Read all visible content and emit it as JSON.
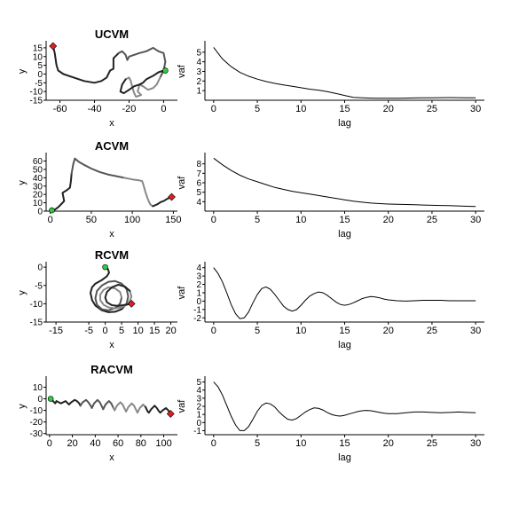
{
  "chart_data": [
    {
      "type": "line",
      "title": "UCVM",
      "xlabel": "x",
      "ylabel": "y",
      "xlim": [
        -68,
        8
      ],
      "ylim": [
        -15,
        18
      ],
      "xticks": [
        -60,
        -40,
        -20,
        0
      ],
      "yticks": [
        -15,
        -10,
        -5,
        0,
        5,
        10,
        15
      ],
      "series": [
        {
          "x": [
            -64,
            -63,
            -62,
            -61,
            -58,
            -52,
            -46,
            -40,
            -36,
            -33,
            -31,
            -29,
            -29,
            -26,
            -24,
            -22,
            -21,
            -20,
            -17,
            -14,
            -10,
            -6,
            -3,
            0,
            1,
            0,
            -2,
            -4,
            -6,
            -9,
            -12,
            -14,
            -15,
            -13,
            -16,
            -17,
            -18,
            -19,
            -20,
            -22,
            -24,
            -25,
            -23,
            -20,
            -17,
            -14,
            -12,
            -10,
            -6,
            -3,
            0,
            1
          ],
          "y": [
            16,
            12,
            5,
            2,
            0,
            -2,
            -4,
            -5,
            -4,
            -2,
            2,
            3,
            9,
            12,
            13,
            11,
            8,
            10,
            11,
            12,
            13,
            15,
            13,
            12,
            7,
            2,
            -2,
            -6,
            -8,
            -9,
            -7,
            -6,
            -10,
            -12,
            -13,
            -11,
            -8,
            -4,
            -2,
            -3,
            -6,
            -10,
            -11,
            -9,
            -7,
            -6,
            -5,
            -3,
            -1,
            1,
            2,
            2
          ]
        }
      ]
    },
    {
      "type": "line",
      "xlabel": "lag",
      "ylabel": "vaf",
      "xlim": [
        -1,
        31
      ],
      "ylim": [
        0,
        6
      ],
      "xticks": [
        0,
        5,
        10,
        15,
        20,
        25,
        30
      ],
      "yticks": [
        1,
        2,
        3,
        4,
        5
      ],
      "series": [
        {
          "x": [
            0,
            1,
            2,
            3,
            4,
            5,
            6,
            7,
            8,
            9,
            10,
            11,
            12,
            13,
            14,
            15,
            16,
            17,
            18,
            19,
            20,
            21,
            22,
            23,
            24,
            25,
            26,
            27,
            28,
            29,
            30
          ],
          "y": [
            5.5,
            4.3,
            3.5,
            2.9,
            2.5,
            2.2,
            1.95,
            1.75,
            1.6,
            1.45,
            1.3,
            1.15,
            1.05,
            0.9,
            0.7,
            0.5,
            0.3,
            0.25,
            0.22,
            0.2,
            0.2,
            0.2,
            0.22,
            0.24,
            0.25,
            0.26,
            0.27,
            0.28,
            0.27,
            0.26,
            0.25
          ]
        }
      ]
    },
    {
      "type": "line",
      "title": "ACVM",
      "xlabel": "x",
      "ylabel": "y",
      "xlim": [
        -5,
        155
      ],
      "ylim": [
        0,
        68
      ],
      "xticks": [
        0,
        50,
        100,
        150
      ],
      "yticks": [
        0,
        10,
        20,
        30,
        40,
        50,
        60
      ],
      "series": [
        {
          "x": [
            2,
            6,
            10,
            14,
            17,
            15,
            20,
            24,
            25,
            26,
            28,
            30,
            35,
            42,
            50,
            60,
            70,
            80,
            90,
            100,
            108,
            112,
            114,
            116,
            118,
            120,
            122,
            125,
            130,
            135,
            138,
            143,
            148
          ],
          "y": [
            1,
            2,
            5,
            9,
            12,
            22,
            25,
            28,
            35,
            45,
            56,
            63,
            59,
            55,
            51,
            47,
            44,
            42,
            40,
            38,
            37,
            36,
            30,
            23,
            17,
            12,
            8,
            6,
            8,
            11,
            12,
            15,
            17
          ]
        }
      ]
    },
    {
      "type": "line",
      "xlabel": "lag",
      "ylabel": "vaf",
      "xlim": [
        -1,
        31
      ],
      "ylim": [
        3,
        9
      ],
      "xticks": [
        0,
        5,
        10,
        15,
        20,
        25,
        30
      ],
      "yticks": [
        4,
        5,
        6,
        7,
        8
      ],
      "series": [
        {
          "x": [
            0,
            1,
            2,
            3,
            4,
            5,
            6,
            7,
            8,
            9,
            10,
            11,
            12,
            13,
            14,
            15,
            16,
            17,
            18,
            19,
            20,
            21,
            22,
            23,
            24,
            25,
            26,
            27,
            28,
            29,
            30
          ],
          "y": [
            8.6,
            7.9,
            7.3,
            6.8,
            6.4,
            6.1,
            5.8,
            5.5,
            5.3,
            5.1,
            4.95,
            4.8,
            4.65,
            4.5,
            4.35,
            4.2,
            4.05,
            3.95,
            3.85,
            3.8,
            3.75,
            3.72,
            3.7,
            3.68,
            3.65,
            3.62,
            3.6,
            3.58,
            3.55,
            3.52,
            3.5
          ]
        }
      ]
    },
    {
      "type": "line",
      "title": "RCVM",
      "xlabel": "x",
      "ylabel": "y",
      "xlim": [
        -18,
        22
      ],
      "ylim": [
        -15,
        1
      ],
      "xticks": [
        -15,
        -5,
        0,
        5,
        10,
        15,
        20
      ],
      "yticks": [
        -15,
        -10,
        -5,
        0
      ],
      "series": [
        {
          "x": [
            0,
            0.8,
            1.2,
            0.5,
            -1,
            -3,
            -4,
            -4.5,
            -4,
            -3,
            -1,
            1,
            3,
            5,
            6.5,
            7,
            6.5,
            5,
            3,
            1,
            -1,
            -2.5,
            -3,
            -2.5,
            -1,
            1,
            3,
            4.5,
            5,
            4.5,
            3,
            1,
            -0.5,
            -1.5,
            -1.5,
            -0.5,
            1,
            3,
            5,
            6.5,
            7.5,
            8,
            7.5,
            6,
            4,
            2,
            0.5,
            0,
            0.5,
            2,
            4,
            6,
            8
          ],
          "y": [
            0,
            -0.5,
            -1.5,
            -2.5,
            -3.5,
            -4.5,
            -5.5,
            -7,
            -9,
            -10.5,
            -11.8,
            -12.3,
            -12.2,
            -11.5,
            -10,
            -8,
            -6,
            -4.5,
            -3.8,
            -4,
            -5,
            -6.5,
            -8.5,
            -10.3,
            -11.5,
            -11.8,
            -11.2,
            -10,
            -8.3,
            -6.8,
            -5.8,
            -5.5,
            -6.2,
            -7.5,
            -9,
            -10.3,
            -11,
            -11.3,
            -11,
            -10.3,
            -9.3,
            -8,
            -6.5,
            -5.3,
            -4.8,
            -5.5,
            -6.8,
            -8.3,
            -9.6,
            -10.4,
            -10.6,
            -10.3,
            -10
          ]
        }
      ]
    },
    {
      "type": "line",
      "xlabel": "lag",
      "ylabel": "vaf",
      "xlim": [
        -1,
        31
      ],
      "ylim": [
        -2.5,
        4.5
      ],
      "xticks": [
        0,
        5,
        10,
        15,
        20,
        25,
        30
      ],
      "yticks": [
        -2,
        -1,
        0,
        1,
        2,
        3,
        4
      ],
      "series": [
        {
          "x": [
            0,
            0.5,
            1,
            1.5,
            2,
            2.5,
            3,
            3.5,
            4,
            4.5,
            5,
            5.5,
            6,
            6.5,
            7,
            7.5,
            8,
            8.5,
            9,
            9.5,
            10,
            10.5,
            11,
            11.5,
            12,
            12.5,
            13,
            13.5,
            14,
            14.5,
            15,
            15.5,
            16,
            16.5,
            17,
            17.5,
            18,
            18.5,
            19,
            19.5,
            20,
            21,
            22,
            23,
            24,
            25,
            26,
            27,
            28,
            29,
            30
          ],
          "y": [
            4,
            3.3,
            2.3,
            1.0,
            -0.4,
            -1.5,
            -2.1,
            -2.0,
            -1.3,
            -0.2,
            0.8,
            1.5,
            1.7,
            1.4,
            0.8,
            0.1,
            -0.6,
            -1.0,
            -1.2,
            -1.0,
            -0.5,
            0.1,
            0.6,
            0.9,
            1.1,
            1.0,
            0.7,
            0.3,
            -0.1,
            -0.4,
            -0.5,
            -0.4,
            -0.2,
            0.05,
            0.3,
            0.45,
            0.55,
            0.5,
            0.4,
            0.25,
            0.15,
            0.05,
            0.0,
            0.05,
            0.1,
            0.1,
            0.1,
            0.05,
            0.05,
            0.05,
            0.05
          ]
        }
      ]
    },
    {
      "type": "line",
      "title": "RACVM",
      "xlabel": "x",
      "ylabel": "y",
      "xlim": [
        -3,
        112
      ],
      "ylim": [
        -31,
        18
      ],
      "xticks": [
        0,
        20,
        40,
        60,
        80,
        100
      ],
      "yticks": [
        -30,
        -20,
        -10,
        0,
        10
      ],
      "series": [
        {
          "x": [
            1,
            3,
            5,
            6,
            8,
            10,
            12,
            14,
            16,
            17,
            19,
            22,
            24,
            26,
            27,
            29,
            32,
            34,
            36,
            37,
            39,
            42,
            44,
            46,
            47,
            49,
            52,
            54,
            56,
            57,
            59,
            62,
            64,
            66,
            67,
            69,
            72,
            74,
            76,
            77,
            79,
            82,
            84,
            86,
            87,
            89,
            92,
            94,
            96,
            97,
            99,
            102,
            104,
            106
          ],
          "y": [
            0,
            -2,
            -4,
            -2,
            -3,
            -4,
            -3,
            -2,
            -4,
            -5,
            -3,
            -1,
            -2,
            -4,
            -6,
            -3,
            -1,
            -3,
            -6,
            -8,
            -4,
            -1,
            -3,
            -7,
            -9,
            -5,
            -2,
            -4,
            -8,
            -10,
            -6,
            -3,
            -5,
            -9,
            -11,
            -7,
            -4,
            -6,
            -10,
            -12,
            -8,
            -5,
            -7,
            -11,
            -12,
            -9,
            -6,
            -8,
            -11,
            -12,
            -10,
            -8,
            -10,
            -13
          ]
        }
      ]
    },
    {
      "type": "line",
      "xlabel": "lag",
      "ylabel": "vaf",
      "xlim": [
        -1,
        31
      ],
      "ylim": [
        -1.5,
        5.5
      ],
      "xticks": [
        0,
        5,
        10,
        15,
        20,
        25,
        30
      ],
      "yticks": [
        -1,
        0,
        1,
        2,
        3,
        4,
        5
      ],
      "series": [
        {
          "x": [
            0,
            0.5,
            1,
            1.5,
            2,
            2.5,
            3,
            3.5,
            4,
            4.5,
            5,
            5.5,
            6,
            6.5,
            7,
            7.5,
            8,
            8.5,
            9,
            9.5,
            10,
            10.5,
            11,
            11.5,
            12,
            12.5,
            13,
            13.5,
            14,
            14.5,
            15,
            15.5,
            16,
            16.5,
            17,
            17.5,
            18,
            18.5,
            19,
            19.5,
            20,
            21,
            22,
            23,
            24,
            25,
            26,
            27,
            28,
            29,
            30
          ],
          "y": [
            5,
            4.4,
            3.4,
            2.1,
            0.8,
            -0.3,
            -1.0,
            -1.0,
            -0.5,
            0.4,
            1.4,
            2.1,
            2.4,
            2.3,
            1.9,
            1.3,
            0.8,
            0.4,
            0.3,
            0.5,
            0.9,
            1.3,
            1.6,
            1.8,
            1.75,
            1.55,
            1.25,
            1.0,
            0.85,
            0.8,
            0.9,
            1.05,
            1.2,
            1.35,
            1.45,
            1.5,
            1.45,
            1.35,
            1.25,
            1.15,
            1.1,
            1.1,
            1.2,
            1.3,
            1.3,
            1.25,
            1.2,
            1.25,
            1.3,
            1.25,
            1.2
          ]
        }
      ]
    }
  ]
}
